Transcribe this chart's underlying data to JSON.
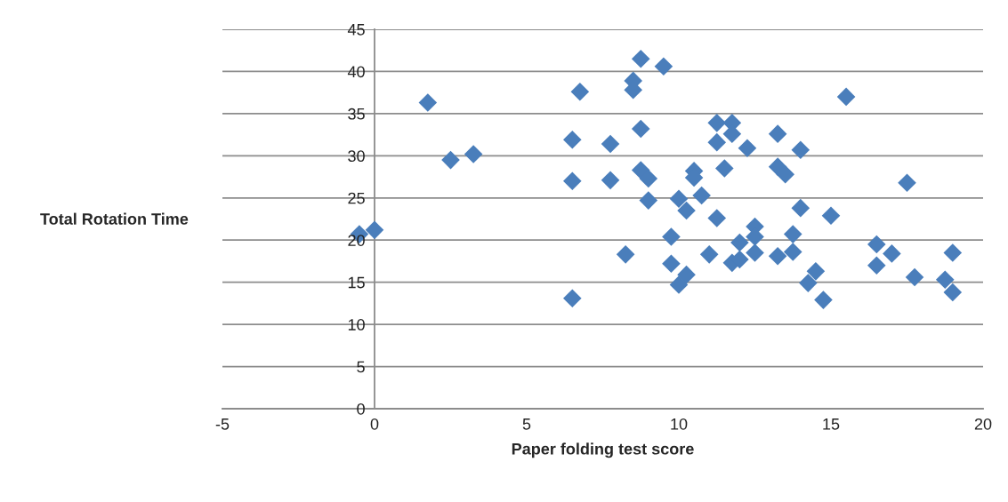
{
  "chart_data": {
    "type": "scatter",
    "xlabel": "Paper folding test score",
    "ylabel": "Total Rotation Time",
    "xlim": [
      -5,
      20
    ],
    "xticks": [
      -5,
      0,
      5,
      10,
      15,
      20
    ],
    "ylim": [
      0,
      45
    ],
    "yticks": [
      0,
      5,
      10,
      15,
      20,
      25,
      30,
      35,
      40,
      45
    ],
    "grid": "y",
    "marker": "diamond",
    "series": [
      {
        "color": "#4a7ebb",
        "x": [
          -0.5,
          0,
          1.75,
          2.5,
          3.25,
          6.5,
          6.5,
          6.5,
          6.75,
          7.75,
          7.75,
          8.25,
          8.5,
          8.5,
          8.75,
          8.75,
          8.75,
          9,
          9,
          9.5,
          9.75,
          9.75,
          10,
          10,
          10.25,
          10.25,
          10.5,
          10.5,
          10.75,
          11,
          11.25,
          11.25,
          11.25,
          11.5,
          11.75,
          11.75,
          11.75,
          12,
          12,
          12.25,
          12.5,
          12.5,
          12.5,
          13.25,
          13.25,
          13.25,
          13.5,
          13.75,
          13.75,
          14,
          14,
          14.25,
          14.5,
          14.75,
          15,
          15.5,
          16.5,
          16.5,
          17,
          17.5,
          17.75,
          18.75,
          19,
          19
        ],
        "values": [
          20.7,
          21.2,
          36.3,
          29.5,
          30.2,
          31.9,
          27.0,
          13.1,
          37.6,
          31.4,
          27.1,
          18.3,
          38.9,
          37.8,
          41.5,
          33.2,
          28.3,
          27.3,
          24.7,
          40.6,
          20.4,
          17.2,
          24.9,
          14.7,
          23.5,
          15.9,
          28.2,
          27.4,
          25.3,
          18.3,
          33.9,
          31.6,
          22.6,
          28.5,
          33.9,
          32.6,
          17.3,
          19.7,
          17.7,
          30.9,
          21.6,
          20.4,
          18.5,
          32.6,
          28.7,
          18.1,
          27.8,
          20.7,
          18.6,
          30.7,
          23.8,
          14.9,
          16.3,
          12.9,
          22.9,
          37.0,
          19.5,
          17.0,
          18.4,
          26.8,
          15.6,
          15.3,
          18.5,
          13.8
        ]
      }
    ]
  }
}
